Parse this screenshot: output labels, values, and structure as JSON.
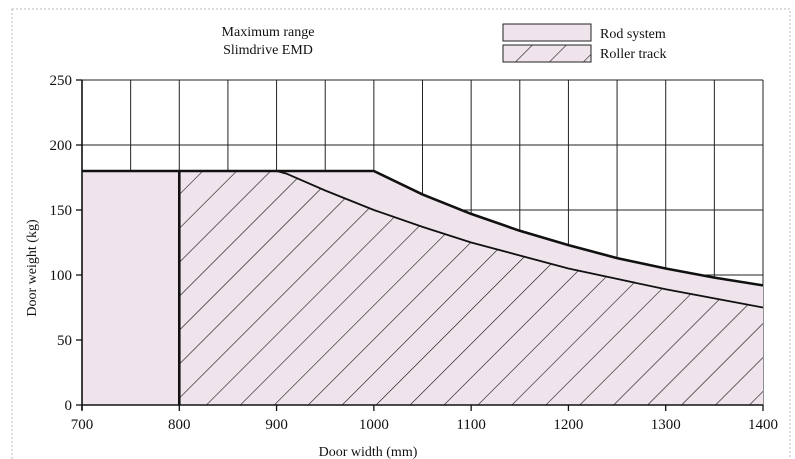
{
  "chart_data": {
    "type": "area",
    "title_lines": [
      "Maximum range",
      "Slimdrive EMD"
    ],
    "xlabel": "Door width (mm)",
    "ylabel": "Door weight (kg)",
    "xlim": [
      700,
      1400
    ],
    "ylim": [
      0,
      250
    ],
    "x_ticks": [
      700,
      800,
      900,
      1000,
      1100,
      1200,
      1300,
      1400
    ],
    "y_ticks": [
      0,
      50,
      100,
      150,
      200,
      250
    ],
    "x_ticks_text": [
      "700",
      "800",
      "900",
      "1000",
      "1100",
      "1200",
      "1300",
      "1400"
    ],
    "y_ticks_text": [
      "0",
      "50",
      "100",
      "150",
      "200",
      "250"
    ],
    "grid": true,
    "legend_position": "top-right",
    "series": [
      {
        "name": "Rod system",
        "fill": "#efe4ec",
        "x": [
          700,
          1000,
          1050,
          1100,
          1150,
          1200,
          1250,
          1300,
          1350,
          1400
        ],
        "y": [
          180,
          180,
          162,
          147,
          134,
          123,
          113,
          105,
          98,
          92
        ]
      },
      {
        "name": "Roller track",
        "fill": "#efe4ec",
        "hatch": "diagonal",
        "x": [
          800,
          900,
          910,
          950,
          1000,
          1050,
          1100,
          1150,
          1200,
          1250,
          1300,
          1350,
          1400
        ],
        "y": [
          180,
          180,
          178,
          165,
          150,
          137,
          125,
          115,
          105,
          97,
          89,
          82,
          75
        ]
      }
    ],
    "vertical_line_x": 800
  }
}
